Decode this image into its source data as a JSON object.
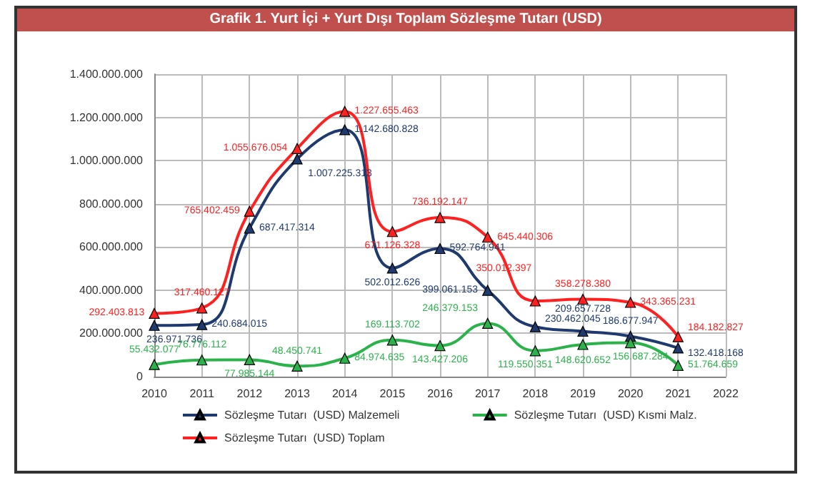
{
  "chart_data": {
    "type": "line",
    "title": "Grafik 1. Yurt İçi + Yurt Dışı Toplam Sözleşme Tutarı (USD)",
    "categories": [
      "2010",
      "2011",
      "2012",
      "2013",
      "2014",
      "2015",
      "2016",
      "2017",
      "2018",
      "2019",
      "2020",
      "2021",
      "2022"
    ],
    "series": [
      {
        "name": "Sözleşme Tutarı  (USD) Malzemeli",
        "color": "#1f3a6e",
        "values": [
          236971736,
          240684015,
          687417314,
          1007225313,
          1142680828,
          502012626,
          592764941,
          399061153,
          230462045,
          209657728,
          186677947,
          132418168,
          null
        ],
        "value_labels": [
          "236.971.736",
          "240.684.015",
          "687.417.314",
          "1.007.225.313",
          "1.142.680.828",
          "502.012.626",
          "592.764.941",
          "399.061.153",
          "230.462.045",
          "209.657.728",
          "186.677.947",
          "132.418.168",
          null
        ]
      },
      {
        "name": "Sözleşme Tutarı  (USD) Kısmi Malz.",
        "color": "#2bb34b",
        "values": [
          55432077,
          76776112,
          77985144,
          48450741,
          84974635,
          169113702,
          143427206,
          246379153,
          119550351,
          148620652,
          156687284,
          51764659,
          null
        ],
        "value_labels": [
          "55.432.077",
          "76.776.112",
          "77.985.144",
          "48.450.741",
          "84.974.635",
          "169.113.702",
          "143.427.206",
          "246.379.153",
          "119.550.351",
          "148.620.652",
          "156.687.284",
          "51.764.659",
          null
        ]
      },
      {
        "name": "Sözleşme Tutarı  (USD) Toplam",
        "color": "#ff2020",
        "values": [
          292403813,
          317460127,
          765402459,
          1055676054,
          1227655463,
          671126328,
          736192147,
          645440306,
          350012397,
          358278380,
          343365231,
          184182827,
          null
        ],
        "value_labels": [
          "292.403.813",
          "317.460.127",
          "765.402.459",
          "1.055.676.054",
          "1.227.655.463",
          "671.126.328",
          "736.192.147",
          "645.440.306",
          "350.012.397",
          "358.278.380",
          "343.365.231",
          "184.182.827",
          null
        ]
      }
    ],
    "ylim": [
      0,
      1400000000
    ],
    "yticks": [
      0,
      {
        "value": 200000000,
        "label": "200.000.000"
      },
      {
        "value": 400000000,
        "label": "400.000.000"
      },
      {
        "value": 600000000,
        "label": "600.000.000"
      },
      {
        "value": 800000000,
        "label": "800.000.000"
      },
      {
        "value": 1000000000,
        "label": "1.000.000.000"
      },
      {
        "value": 1200000000,
        "label": "1.200.000.000"
      },
      {
        "value": 1400000000,
        "label": "1.400.000.000"
      }
    ],
    "grid": true,
    "legend": "bottom",
    "marker": "triangle",
    "line_style": "solid"
  }
}
